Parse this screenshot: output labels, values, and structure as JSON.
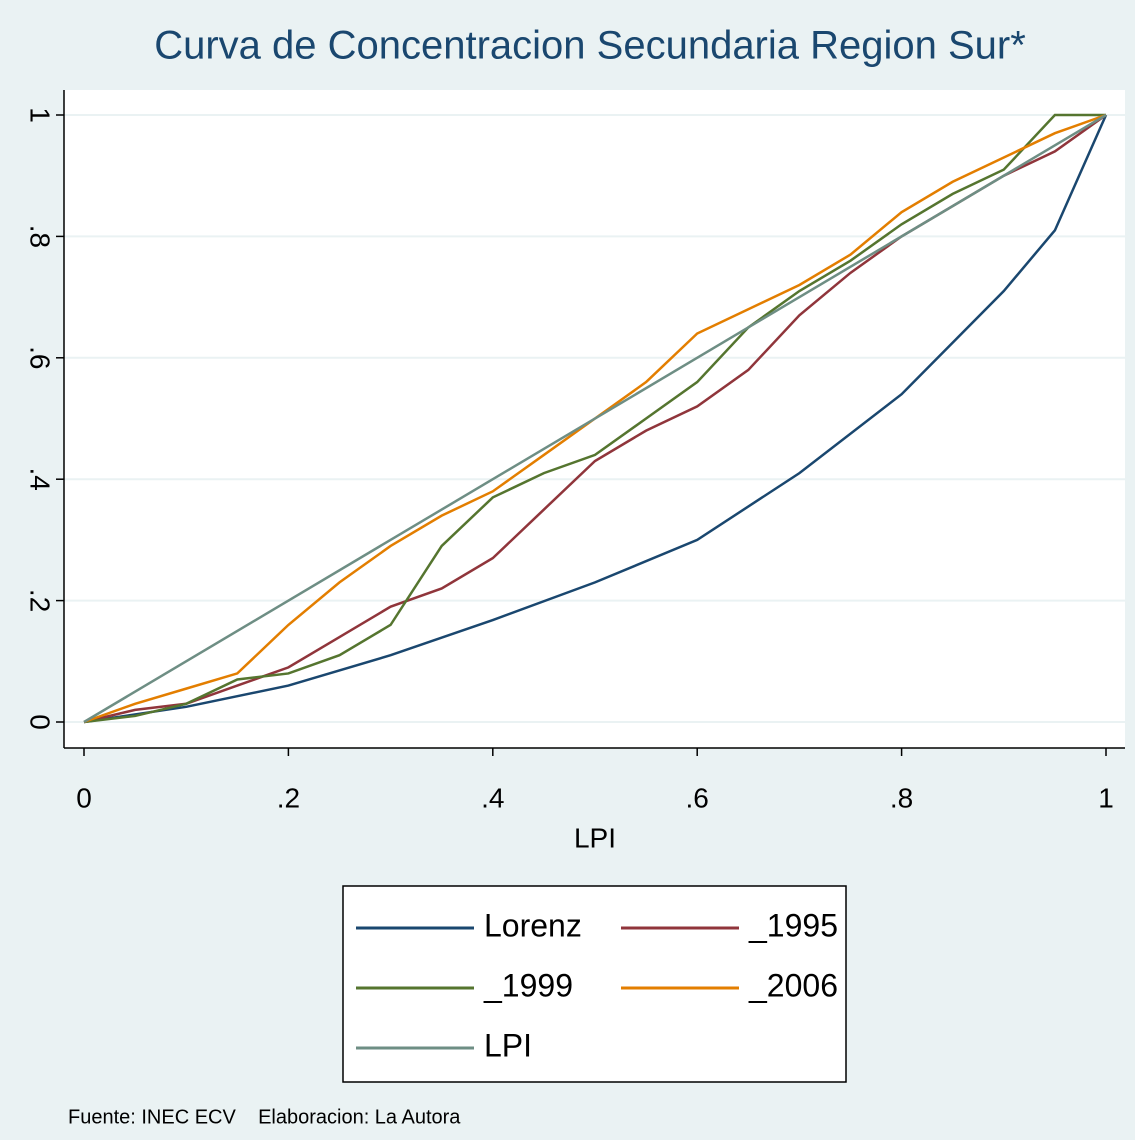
{
  "chart_data": {
    "type": "line",
    "title": "Curva de Concentracion Secundaria Region Sur*",
    "xlabel": "LPI",
    "note": "Fuente: INEC ECV    Elaboracion: La Autora",
    "xlim": [
      0,
      1
    ],
    "ylim": [
      0,
      1
    ],
    "xticks": [
      0,
      {
        "value": 0.2,
        "label": ".2"
      },
      {
        "value": 0.4,
        "label": ".4"
      },
      {
        "value": 0.6,
        "label": ".6"
      },
      {
        "value": 0.8,
        "label": ".8"
      },
      1
    ],
    "yticks": [
      0,
      {
        "value": 0.2,
        "label": ".2"
      },
      {
        "value": 0.4,
        "label": ".4"
      },
      {
        "value": 0.6,
        "label": ".6"
      },
      {
        "value": 0.8,
        "label": ".8"
      },
      1
    ],
    "grid": true,
    "series": [
      {
        "name": "Lorenz",
        "color": "#1a476f",
        "x": [
          0,
          0.1,
          0.2,
          0.3,
          0.4,
          0.5,
          0.6,
          0.7,
          0.8,
          0.9,
          0.95,
          1
        ],
        "values": [
          0,
          0.025,
          0.06,
          0.11,
          0.168,
          0.23,
          0.3,
          0.41,
          0.54,
          0.71,
          0.81,
          1
        ]
      },
      {
        "name": "_1995",
        "color": "#90353b",
        "x": [
          0,
          0.05,
          0.1,
          0.15,
          0.2,
          0.25,
          0.3,
          0.35,
          0.4,
          0.45,
          0.5,
          0.55,
          0.6,
          0.65,
          0.7,
          0.75,
          0.8,
          0.85,
          0.9,
          0.95,
          1
        ],
        "values": [
          0,
          0.02,
          0.03,
          0.06,
          0.09,
          0.14,
          0.19,
          0.22,
          0.27,
          0.35,
          0.43,
          0.48,
          0.52,
          0.58,
          0.67,
          0.74,
          0.8,
          0.85,
          0.9,
          0.94,
          1
        ]
      },
      {
        "name": "_1999",
        "color": "#55752f",
        "x": [
          0,
          0.05,
          0.1,
          0.15,
          0.2,
          0.25,
          0.3,
          0.35,
          0.4,
          0.45,
          0.5,
          0.55,
          0.6,
          0.65,
          0.7,
          0.75,
          0.8,
          0.85,
          0.9,
          0.95,
          1
        ],
        "values": [
          0,
          0.01,
          0.03,
          0.07,
          0.08,
          0.11,
          0.16,
          0.29,
          0.37,
          0.41,
          0.44,
          0.5,
          0.56,
          0.65,
          0.71,
          0.76,
          0.82,
          0.87,
          0.91,
          1,
          1
        ]
      },
      {
        "name": "_2006",
        "color": "#e37e00",
        "x": [
          0,
          0.05,
          0.1,
          0.15,
          0.2,
          0.25,
          0.3,
          0.35,
          0.4,
          0.45,
          0.5,
          0.55,
          0.6,
          0.65,
          0.7,
          0.75,
          0.8,
          0.85,
          0.9,
          0.95,
          1
        ],
        "values": [
          0,
          0.03,
          0.055,
          0.08,
          0.16,
          0.23,
          0.29,
          0.34,
          0.38,
          0.44,
          0.5,
          0.56,
          0.64,
          0.68,
          0.72,
          0.77,
          0.84,
          0.89,
          0.93,
          0.97,
          1
        ]
      },
      {
        "name": "LPI",
        "color": "#6e8e84",
        "x": [
          0,
          1
        ],
        "values": [
          0,
          1
        ]
      }
    ]
  }
}
